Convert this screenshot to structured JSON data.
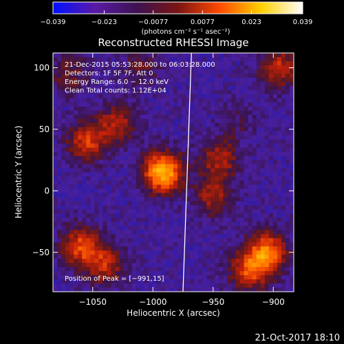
{
  "chart_data": {
    "type": "heatmap",
    "title": "Reconstructed RHESSI Image",
    "xlabel": "Heliocentric X (arcsec)",
    "ylabel": "Heliocentric Y (arcsec)",
    "xlim": [
      -1083,
      -883
    ],
    "ylim": [
      -82,
      112
    ],
    "x_ticks": [
      -1050,
      -1000,
      -950,
      -900
    ],
    "x_tick_labels": [
      "−1050",
      "−1000",
      "−950",
      "−900"
    ],
    "y_ticks": [
      -50,
      0,
      50,
      100
    ],
    "y_tick_labels": [
      "−50",
      "0",
      "50",
      "100"
    ],
    "colorbar": {
      "ticks": [
        -0.039,
        -0.023,
        -0.0077,
        0.0077,
        0.023,
        0.039
      ],
      "tick_labels": [
        "−0.039",
        "−0.023",
        "−0.0077",
        "0.0077",
        "0.023",
        "0.039"
      ],
      "range": [
        -0.039,
        0.039
      ],
      "unit_label": "(photons cm⁻² s⁻¹ asec⁻²)",
      "colors": [
        "#0010ff",
        "#5a1aa8",
        "#3d1252",
        "#7a1414",
        "#ff4a00",
        "#ffd000",
        "#ffffff"
      ]
    },
    "info_lines": [
      "21-Dec-2015 05:53:28.000 to 06:03:28.000",
      "Detectors: 1F 5F 7F, Att 0",
      "Energy Range: 6.0 − 12.0 keV",
      "Clean     Total counts: 1.12E+04"
    ],
    "peak_label": "Position of Peak = [−991,15]",
    "peak": [
      -991,
      15
    ],
    "limb_line": [
      [
        -968,
        112
      ],
      [
        -975,
        -82
      ]
    ],
    "sources": [
      {
        "x": -992,
        "y": 15,
        "intensity": 1.0
      },
      {
        "x": -1055,
        "y": 40,
        "intensity": 0.55
      },
      {
        "x": -1030,
        "y": 55,
        "intensity": 0.45
      },
      {
        "x": -1060,
        "y": -45,
        "intensity": 0.6
      },
      {
        "x": -1040,
        "y": -60,
        "intensity": 0.5
      },
      {
        "x": -905,
        "y": -50,
        "intensity": 0.75
      },
      {
        "x": -920,
        "y": -65,
        "intensity": 0.6
      },
      {
        "x": -945,
        "y": 25,
        "intensity": 0.45
      },
      {
        "x": -950,
        "y": -5,
        "intensity": 0.4
      },
      {
        "x": -895,
        "y": 100,
        "intensity": 0.5
      },
      {
        "x": -1070,
        "y": 95,
        "intensity": 0.3
      },
      {
        "x": -1010,
        "y": 100,
        "intensity": 0.25
      },
      {
        "x": -930,
        "y": 55,
        "intensity": 0.15
      }
    ]
  },
  "footer": {
    "timestamp": "21-Oct-2017 18:10"
  }
}
